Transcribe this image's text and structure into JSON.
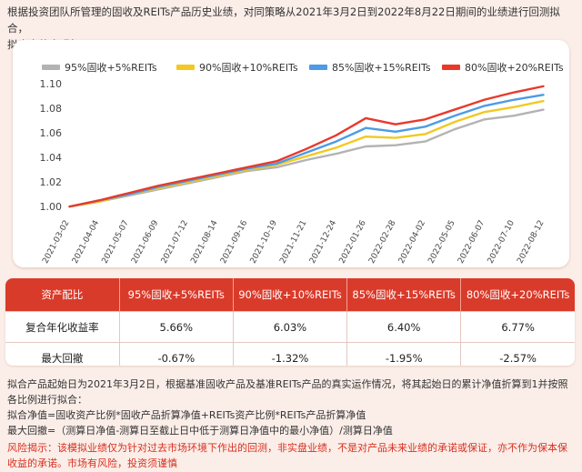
{
  "intro": {
    "line1": "根据投资团队所管理的固收及REITs产品历史业绩，对同策略从2021年3月2日到2022年8月22日期间的业绩进行回测拟合，",
    "line2": "拟合净值表现如下："
  },
  "chart_data": {
    "type": "line",
    "title": "",
    "xlabel": "",
    "ylabel": "",
    "ylim": [
      0.995,
      1.103
    ],
    "yticks": [
      1.0,
      1.02,
      1.04,
      1.06,
      1.08,
      1.1
    ],
    "ytick_labels": [
      "1.00",
      "1.02",
      "1.04",
      "1.06",
      "1.08",
      "1.10"
    ],
    "categories": [
      "2021-03-02",
      "2021-04-04",
      "2021-05-07",
      "2021-06-09",
      "2021-07-12",
      "2021-08-14",
      "2021-09-16",
      "2021-10-19",
      "2021-11-21",
      "2021-12-24",
      "2022-01-26",
      "2022-02-28",
      "2022-04-02",
      "2022-05-05",
      "2022-06-07",
      "2022-07-10",
      "2022-08-12"
    ],
    "legend_position": "top",
    "grid": false,
    "series": [
      {
        "name": "95%固收+5%REITs",
        "color": "#b3b3b3",
        "values": [
          1.0,
          1.004,
          1.009,
          1.014,
          1.019,
          1.024,
          1.029,
          1.032,
          1.038,
          1.043,
          1.049,
          1.05,
          1.053,
          1.063,
          1.071,
          1.074,
          1.079
        ]
      },
      {
        "name": "90%固收+10%REITs",
        "color": "#f2c922",
        "values": [
          1.0,
          1.004,
          1.01,
          1.015,
          1.02,
          1.025,
          1.03,
          1.034,
          1.041,
          1.048,
          1.057,
          1.056,
          1.059,
          1.069,
          1.077,
          1.081,
          1.086
        ]
      },
      {
        "name": "85%固收+15%REITs",
        "color": "#4d9be6",
        "values": [
          1.0,
          1.005,
          1.01,
          1.016,
          1.021,
          1.026,
          1.031,
          1.035,
          1.044,
          1.053,
          1.064,
          1.061,
          1.065,
          1.074,
          1.082,
          1.087,
          1.091
        ]
      },
      {
        "name": "80%固收+20%REITs",
        "color": "#e8392b",
        "values": [
          1.0,
          1.005,
          1.011,
          1.017,
          1.022,
          1.027,
          1.032,
          1.037,
          1.047,
          1.058,
          1.072,
          1.067,
          1.071,
          1.079,
          1.087,
          1.093,
          1.098
        ]
      }
    ]
  },
  "table": {
    "headers": [
      "资产配比",
      "95%固收+5%REITs",
      "90%固收+10%REITs",
      "85%固收+15%REITs",
      "80%固收+20%REITs"
    ],
    "rows": [
      {
        "label": "复合年化收益率",
        "values": [
          "5.66%",
          "6.03%",
          "6.40%",
          "6.77%"
        ]
      },
      {
        "label": "最大回撤",
        "values": [
          "-0.67%",
          "-1.32%",
          "-1.95%",
          "-2.57%"
        ]
      }
    ]
  },
  "notes": {
    "line1": "拟合产品起始日为2021年3月2日，根据基准固收产品及基准REITs产品的真实运作情况，将其起始日的累计净值折算到1并按照",
    "line2": "各比例进行拟合：",
    "line3": "拟合净值=固收资产比例*固收产品折算净值+REITs资产比例*REITs产品折算净值",
    "line4": "最大回撤=（测算日净值-测算日至截止日中低于测算日净值中的最小净值）/测算日净值"
  },
  "risk": {
    "line1": "风险揭示：该模拟业绩仅为针对过去市场环境下作出的回测，非实盘业绩，不是对产品未来业绩的承诺或保证，亦不作为保本保",
    "line2": "收益的承诺。市场有风险，投资须谨慎"
  }
}
